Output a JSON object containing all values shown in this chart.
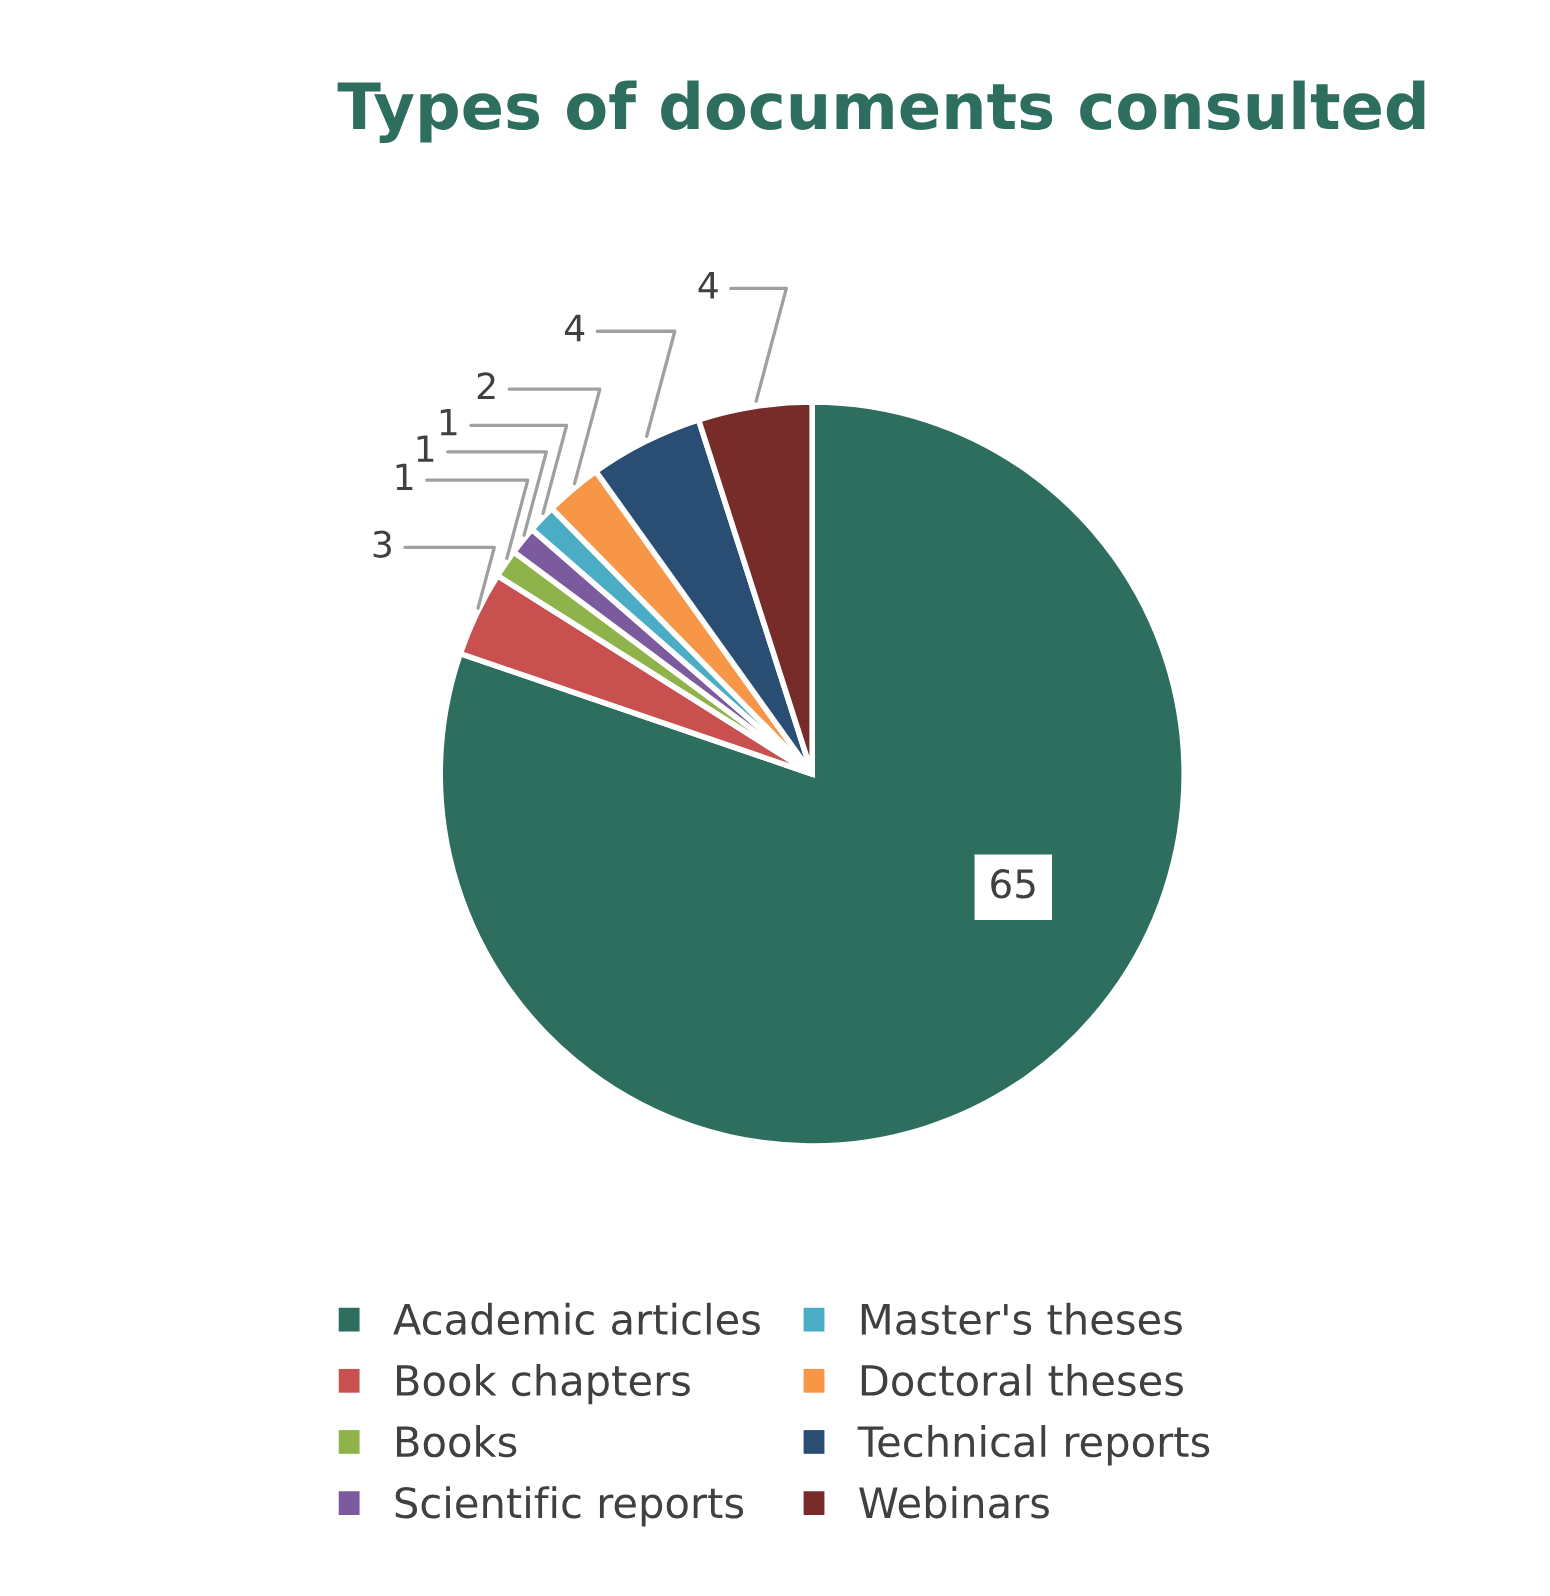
{
  "chart_data": {
    "type": "pie",
    "title": "Types of documents consulted",
    "categories": [
      "Academic articles",
      "Book chapters",
      "Books",
      "Scientific reports",
      "Master's theses",
      "Doctoral theses",
      "Technical reports",
      "Webinars"
    ],
    "values": [
      65,
      3,
      1,
      1,
      1,
      2,
      4,
      4
    ],
    "colors": [
      "#2e6e5e",
      "#c8504e",
      "#8db34a",
      "#7b5a9e",
      "#4aacc5",
      "#f79646",
      "#2a4d74",
      "#772c2a"
    ],
    "data_labels": true,
    "legend": "bottom"
  }
}
